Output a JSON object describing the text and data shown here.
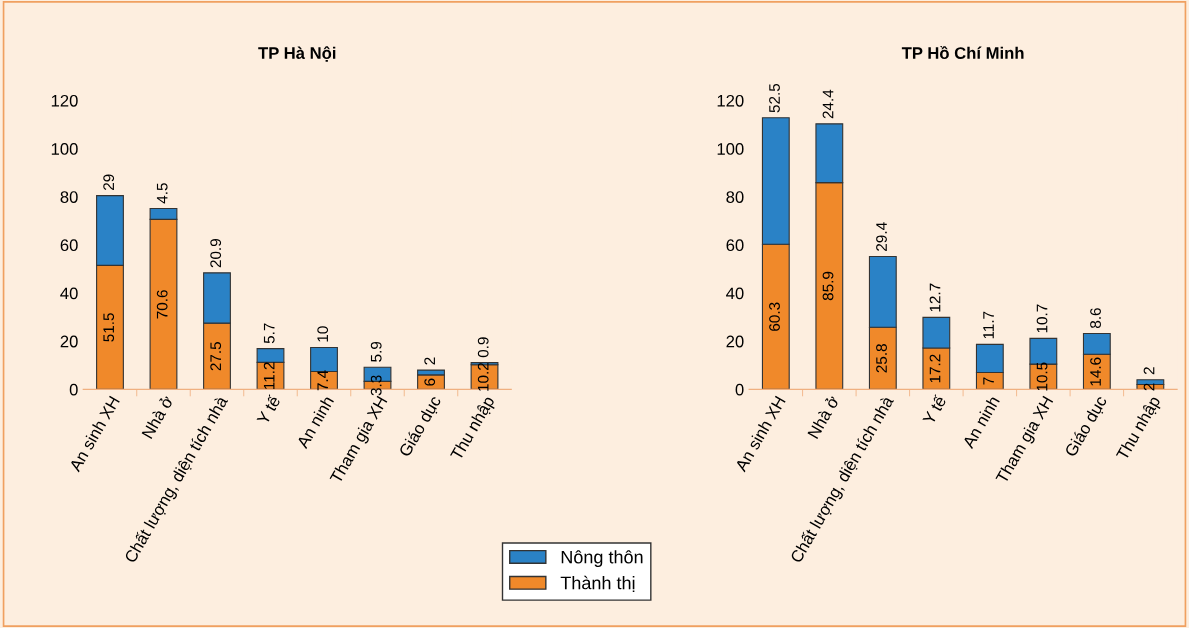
{
  "chart_data": [
    {
      "type": "bar",
      "title": "TP Hà Nội",
      "stacked": true,
      "data_labels": true,
      "legend": "bottom",
      "grid": false,
      "categories": [
        "An sinh XH",
        "Nhà ở",
        "Chất lượng, diện tích nhà",
        "Y tế",
        "An ninh",
        "Tham gia XH",
        "Giáo dục",
        "Thu nhập"
      ],
      "series": [
        {
          "name": "Thành thị",
          "color": "#f0892a",
          "values": [
            51.5,
            70.6,
            27.5,
            11.2,
            7.4,
            3.3,
            6,
            10.2
          ]
        },
        {
          "name": "Nông thôn",
          "color": "#2a82c6",
          "values": [
            29,
            4.5,
            20.9,
            5.7,
            10,
            5.9,
            2,
            0.9
          ]
        }
      ],
      "ylim": [
        0,
        120
      ],
      "yticks": [
        0,
        20,
        40,
        60,
        80,
        100,
        120
      ]
    },
    {
      "type": "bar",
      "title": "TP Hồ Chí Minh",
      "stacked": true,
      "data_labels": true,
      "grid": false,
      "categories": [
        "An sinh XH",
        "Nhà ở",
        "Chất lượng, diện tích nhà",
        "Y tế",
        "An ninh",
        "Tham gia XH",
        "Giáo dục",
        "Thu nhập"
      ],
      "series": [
        {
          "color": "#f0892a",
          "values": [
            60.3,
            85.9,
            25.8,
            17.2,
            7,
            10.5,
            14.6,
            2
          ]
        },
        {
          "color": "#2a82c6",
          "values": [
            52.5,
            24.4,
            29.4,
            12.7,
            11.7,
            10.7,
            8.6,
            2
          ]
        }
      ],
      "ylim": [
        0,
        120
      ],
      "yticks": [
        0,
        20,
        40,
        60,
        80,
        100,
        120
      ]
    }
  ]
}
